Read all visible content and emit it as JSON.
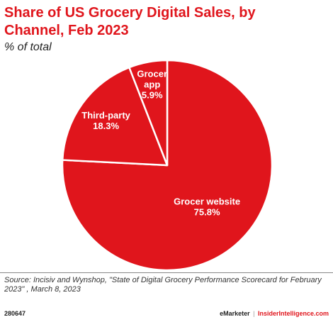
{
  "chart_data": {
    "type": "pie",
    "title": "Share of US Grocery Digital Sales, by Channel, Feb 2023",
    "subtitle": "% of total",
    "slices": [
      {
        "name": "Grocer website",
        "value": 75.8,
        "label": "75.8%"
      },
      {
        "name": "Third-party",
        "value": 18.3,
        "label": "18.3%"
      },
      {
        "name": "Grocer app",
        "value": 5.9,
        "label": "5.9%"
      }
    ],
    "colors": {
      "slice": "#e0151c",
      "separator": "#ffffff"
    }
  },
  "source": "Source: Incisiv and Wynshop, \"State of Digital Grocery Performance Scorecard for February 2023\" , March 8, 2023",
  "footer": {
    "chart_id": "280647",
    "brand": "eMarketer",
    "separator": "|",
    "site": "InsiderIntelligence.com"
  }
}
